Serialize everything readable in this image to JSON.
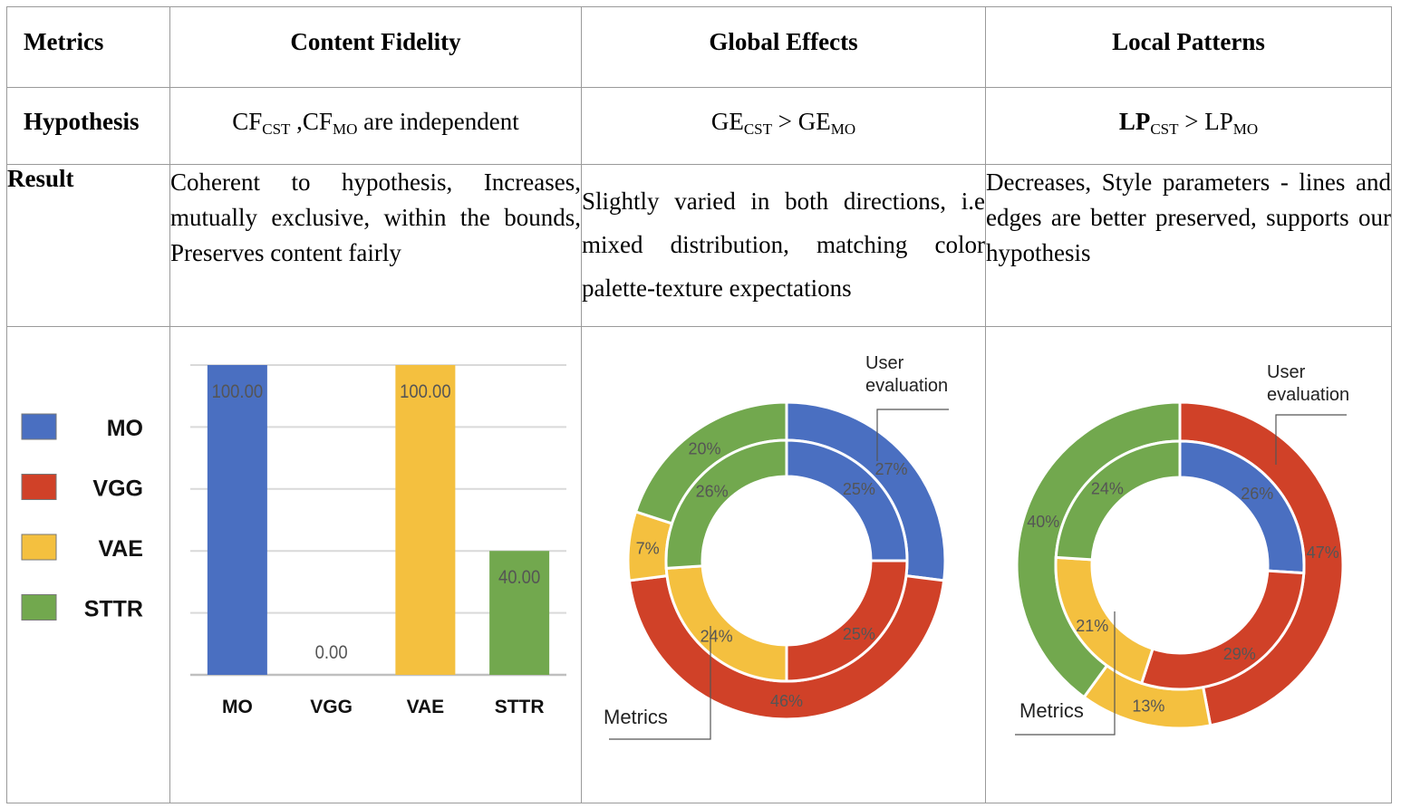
{
  "header": {
    "metrics": "Metrics",
    "content_fidelity": "Content Fidelity",
    "global_effects": "Global Effects",
    "local_patterns": "Local Patterns"
  },
  "hypothesis": {
    "label": "Hypothesis",
    "cf": {
      "a": "CF",
      "a_sub": "CST",
      "sep": " ,CF",
      "b_sub": "MO",
      "rest": " are independent"
    },
    "ge": {
      "a": "GE",
      "a_sub": "CST",
      "op": " > GE",
      "b_sub": "MO"
    },
    "lp": {
      "a": "LP",
      "a_sub": "CST",
      "op": " > LP",
      "b_sub": "MO"
    }
  },
  "result": {
    "label": "Result",
    "cf": "Coherent to hypothesis, Increases, mutually exclusive, within the bounds, Preserves content fairly",
    "ge": "Slightly varied in both directions, i.e mixed distribution, matching color palette-texture  expectations",
    "lp": "Decreases, Style parameters - lines and edges are better preserved, supports our hypothesis"
  },
  "legend": [
    {
      "label": "MO",
      "color": "#4a6fc1"
    },
    {
      "label": "VGG",
      "color": "#d04128"
    },
    {
      "label": "VAE",
      "color": "#f4c03f"
    },
    {
      "label": "STTR",
      "color": "#72a84e"
    }
  ],
  "chart_data": [
    {
      "type": "bar",
      "categories": [
        "MO",
        "VGG",
        "VAE",
        "STTR"
      ],
      "values": [
        100.0,
        0.0,
        100.0,
        40.0
      ],
      "value_labels": [
        "100.00",
        "0.00",
        "100.00",
        "40.00"
      ],
      "colors": [
        "#4a6fc1",
        "#d04128",
        "#f4c03f",
        "#72a84e"
      ],
      "ylim": [
        0,
        100
      ],
      "grid": true
    },
    {
      "type": "pie",
      "subtype": "double-donut",
      "labels": [
        "MO",
        "VGG",
        "VAE",
        "STTR"
      ],
      "colors": [
        "#4a6fc1",
        "#d04128",
        "#f4c03f",
        "#72a84e"
      ],
      "outer_name": "User evaluation",
      "outer": [
        27,
        46,
        7,
        20
      ],
      "inner_name": "Metrics",
      "inner": [
        25,
        25,
        24,
        26
      ]
    },
    {
      "type": "pie",
      "subtype": "double-donut",
      "labels": [
        "MO",
        "VGG",
        "VAE",
        "STTR"
      ],
      "colors": [
        "#4a6fc1",
        "#d04128",
        "#f4c03f",
        "#72a84e"
      ],
      "outer_name": "User evaluation",
      "outer": [
        0,
        47,
        13,
        40
      ],
      "inner_name": "Metrics",
      "inner": [
        26,
        29,
        21,
        24
      ]
    }
  ]
}
